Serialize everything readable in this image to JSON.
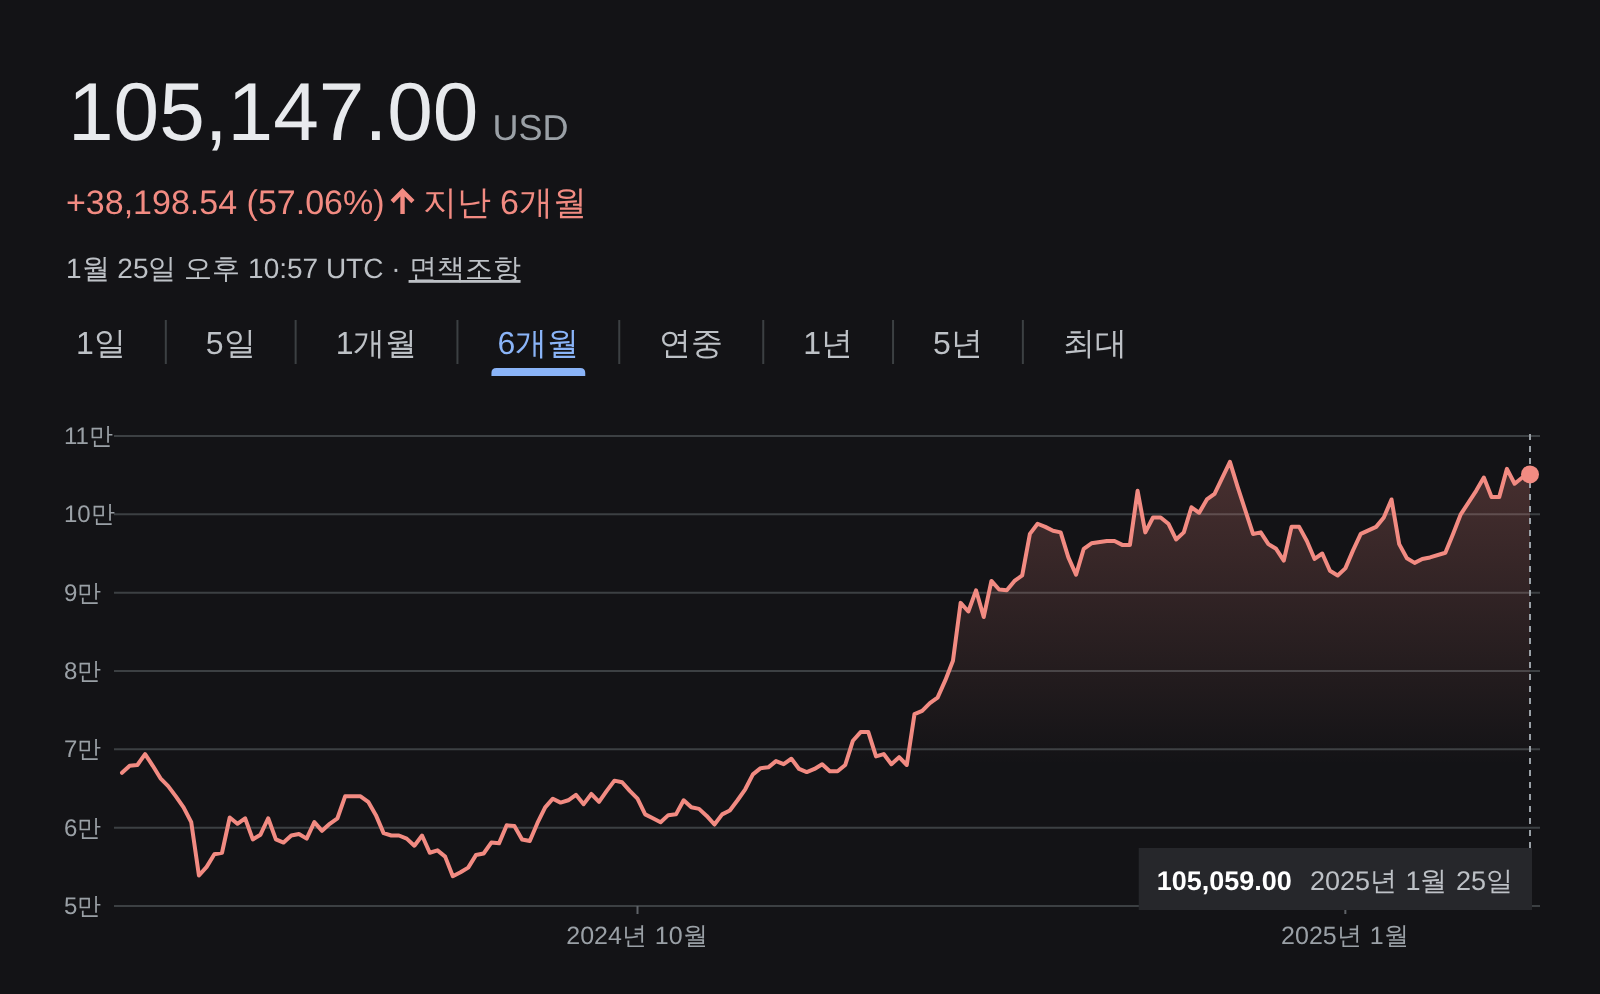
{
  "chart_data": [
    {
      "type": "other",
      "title": "105,147.00",
      "annotations": [
        "USD",
        "+38,198.54 (57.06%)",
        "지난 6개월",
        "1월 25일 오후 10:57 UTC ·",
        "면책조항"
      ],
      "categories": [
        "1일",
        "5일",
        "1개월",
        "6개월",
        "연중",
        "1년",
        "5년",
        "최대"
      ],
      "colors": [
        "#bdc1c6",
        "#bdc1c6",
        "#bdc1c6",
        "#8ab4f8",
        "#bdc1c6",
        "#bdc1c6",
        "#bdc1c6",
        "#bdc1c6"
      ]
    },
    {
      "type": "area",
      "series": [
        {
          "type": "area",
          "color": "#f28b82",
          "x": [
            "2024-07-26",
            "2024-07-27",
            "2024-07-28",
            "2024-07-29",
            "2024-07-30",
            "2024-07-31",
            "2024-08-01",
            "2024-08-02",
            "2024-08-03",
            "2024-08-04",
            "2024-08-05",
            "2024-08-06",
            "2024-08-07",
            "2024-08-08",
            "2024-08-09",
            "2024-08-10",
            "2024-08-11",
            "2024-08-12",
            "2024-08-13",
            "2024-08-14",
            "2024-08-15",
            "2024-08-16",
            "2024-08-17",
            "2024-08-18",
            "2024-08-19",
            "2024-08-20",
            "2024-08-21",
            "2024-08-22",
            "2024-08-23",
            "2024-08-24",
            "2024-08-25",
            "2024-08-26",
            "2024-08-27",
            "2024-08-28",
            "2024-08-29",
            "2024-08-30",
            "2024-08-31",
            "2024-09-01",
            "2024-09-02",
            "2024-09-03",
            "2024-09-04",
            "2024-09-05",
            "2024-09-06",
            "2024-09-07",
            "2024-09-08",
            "2024-09-09",
            "2024-09-10",
            "2024-09-11",
            "2024-09-12",
            "2024-09-13",
            "2024-09-14",
            "2024-09-15",
            "2024-09-16",
            "2024-09-17",
            "2024-09-18",
            "2024-09-19",
            "2024-09-20",
            "2024-09-21",
            "2024-09-22",
            "2024-09-23",
            "2024-09-24",
            "2024-09-25",
            "2024-09-26",
            "2024-09-27",
            "2024-09-28",
            "2024-09-29",
            "2024-09-30",
            "2024-10-01",
            "2024-10-02",
            "2024-10-03",
            "2024-10-04",
            "2024-10-05",
            "2024-10-06",
            "2024-10-07",
            "2024-10-08",
            "2024-10-09",
            "2024-10-10",
            "2024-10-11",
            "2024-10-12",
            "2024-10-13",
            "2024-10-14",
            "2024-10-15",
            "2024-10-16",
            "2024-10-17",
            "2024-10-18",
            "2024-10-19",
            "2024-10-20",
            "2024-10-21",
            "2024-10-22",
            "2024-10-23",
            "2024-10-24",
            "2024-10-25",
            "2024-10-26",
            "2024-10-27",
            "2024-10-28",
            "2024-10-29",
            "2024-10-30",
            "2024-10-31",
            "2024-11-01",
            "2024-11-02",
            "2024-11-03",
            "2024-11-04",
            "2024-11-05",
            "2024-11-06",
            "2024-11-07",
            "2024-11-08",
            "2024-11-09",
            "2024-11-10",
            "2024-11-11",
            "2024-11-12",
            "2024-11-13",
            "2024-11-14",
            "2024-11-15",
            "2024-11-16",
            "2024-11-17",
            "2024-11-18",
            "2024-11-19",
            "2024-11-20",
            "2024-11-21",
            "2024-11-22",
            "2024-11-23",
            "2024-11-24",
            "2024-11-25",
            "2024-11-26",
            "2024-11-27",
            "2024-11-28",
            "2024-11-29",
            "2024-12-01",
            "2024-12-02",
            "2024-12-03",
            "2024-12-04",
            "2024-12-05",
            "2024-12-06",
            "2024-12-07",
            "2024-12-08",
            "2024-12-09",
            "2024-12-10",
            "2024-12-11",
            "2024-12-12",
            "2024-12-13",
            "2024-12-14",
            "2024-12-15",
            "2024-12-17",
            "2024-12-18",
            "2024-12-20",
            "2024-12-21",
            "2024-12-22",
            "2024-12-23",
            "2024-12-24",
            "2024-12-25",
            "2024-12-26",
            "2024-12-27",
            "2024-12-28",
            "2024-12-29",
            "2024-12-30",
            "2024-12-31",
            "2025-01-01",
            "2025-01-02",
            "2025-01-03",
            "2025-01-05",
            "2025-01-06",
            "2025-01-07",
            "2025-01-08",
            "2025-01-09",
            "2025-01-10",
            "2025-01-11",
            "2025-01-12",
            "2025-01-14",
            "2025-01-15",
            "2025-01-16",
            "2025-01-18",
            "2025-01-19",
            "2025-01-20",
            "2025-01-21",
            "2025-01-22",
            "2025-01-23",
            "2025-01-24",
            "2025-01-25"
          ],
          "values": [
            6.7,
            6.79,
            6.8,
            6.94,
            6.79,
            6.63,
            6.53,
            6.4,
            6.26,
            6.07,
            5.39,
            5.5,
            5.66,
            5.68,
            6.13,
            6.05,
            6.12,
            5.85,
            5.91,
            6.12,
            5.85,
            5.81,
            5.9,
            5.92,
            5.86,
            6.07,
            5.96,
            6.05,
            6.12,
            6.4,
            6.4,
            6.4,
            6.33,
            6.16,
            5.93,
            5.9,
            5.9,
            5.86,
            5.77,
            5.9,
            5.68,
            5.71,
            5.63,
            5.38,
            5.43,
            5.49,
            5.65,
            5.67,
            5.81,
            5.8,
            6.03,
            6.02,
            5.85,
            5.83,
            6.06,
            6.26,
            6.37,
            6.32,
            6.35,
            6.42,
            6.3,
            6.43,
            6.33,
            6.47,
            6.6,
            6.58,
            6.47,
            6.37,
            6.17,
            6.12,
            6.07,
            6.16,
            6.17,
            6.35,
            6.26,
            6.24,
            6.15,
            6.04,
            6.17,
            6.22,
            6.35,
            6.49,
            6.68,
            6.76,
            6.77,
            6.85,
            6.81,
            6.88,
            6.75,
            6.71,
            6.75,
            6.81,
            6.72,
            6.72,
            6.8,
            7.11,
            7.22,
            7.22,
            6.91,
            6.94,
            6.81,
            6.9,
            6.8,
            7.45,
            7.49,
            7.59,
            7.66,
            7.88,
            8.13,
            8.87,
            8.76,
            9.03,
            8.69,
            9.15,
            9.04,
            9.03,
            9.15,
            9.22,
            9.75,
            9.88,
            9.84,
            9.79,
            9.77,
            9.45,
            9.23,
            9.56,
            9.63,
            9.66,
            9.66,
            9.61,
            9.61,
            10.3,
            9.77,
            9.96,
            9.96,
            9.88,
            9.68,
            9.77,
            10.09,
            10.02,
            10.19,
            10.26,
            10.67,
            10.35,
            9.75,
            9.77,
            9.62,
            9.56,
            9.41,
            9.84,
            9.84,
            9.66,
            9.43,
            9.5,
            9.28,
            9.22,
            9.31,
            9.54,
            9.75,
            9.84,
            9.96,
            10.19,
            9.62,
            9.44,
            9.38,
            9.43,
            9.45,
            9.51,
            9.75,
            10,
            10.3,
            10.47,
            10.22,
            10.22,
            10.58,
            10.39,
            10.47,
            10.51
          ]
        },
        {
          "type": "scatter",
          "color": "#f28b82",
          "x": [
            "2025-01-25"
          ],
          "values": [
            10.51
          ]
        }
      ],
      "xlim": [
        "2024-07-26",
        "2025-01-25"
      ],
      "xticks": [
        {
          "value": "2024-10-01",
          "label": "2024년 10월"
        },
        {
          "value": "2025-01-01",
          "label": "2025년 1월"
        }
      ],
      "ylim": [
        5,
        11
      ],
      "yticks": [
        {
          "value": 5,
          "label": "5만"
        },
        {
          "value": 6,
          "label": "6만"
        },
        {
          "value": 7,
          "label": "7만"
        },
        {
          "value": 8,
          "label": "8만"
        },
        {
          "value": 9,
          "label": "9만"
        },
        {
          "value": 10,
          "label": "10만"
        },
        {
          "value": 11,
          "label": "11만"
        }
      ],
      "grid": "y",
      "ref_lines": [
        {
          "axis": "x",
          "value": "2025-01-25",
          "line_style": "dashed",
          "color": "#9aa0a6"
        }
      ],
      "annotations": [
        "105,059.00",
        "2025년 1월 25일"
      ]
    }
  ]
}
